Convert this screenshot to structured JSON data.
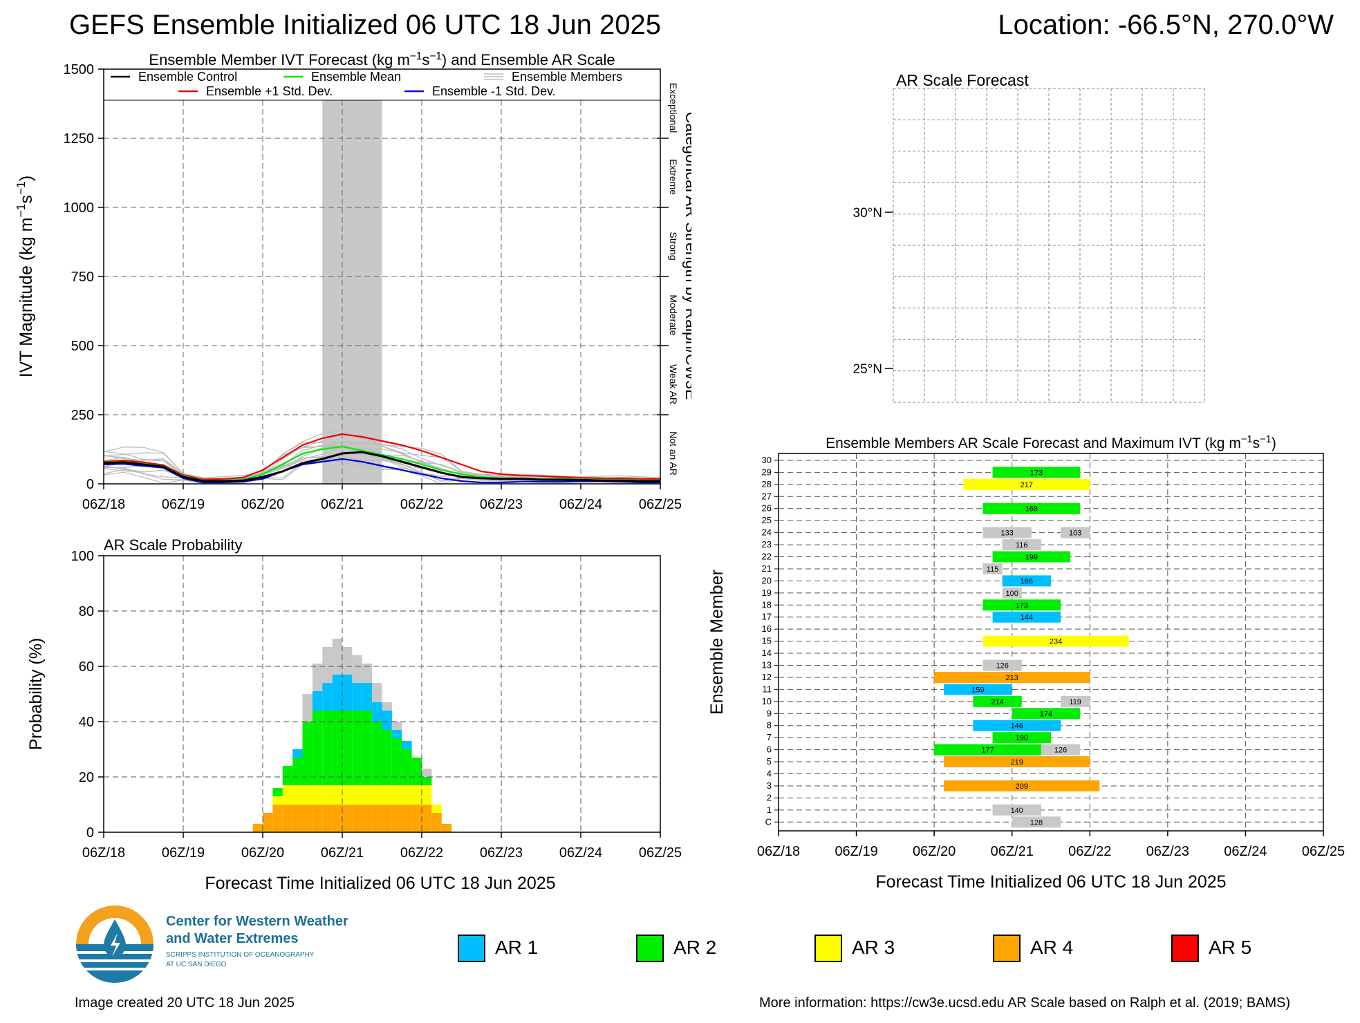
{
  "header": {
    "title": "GEFS Ensemble Initialized 06 UTC 18 Jun 2025",
    "location": "Location: -66.5°N, 270.0°W"
  },
  "time_ticks": [
    "06Z/18",
    "06Z/19",
    "06Z/20",
    "06Z/21",
    "06Z/22",
    "06Z/23",
    "06Z/24",
    "06Z/25"
  ],
  "colors": {
    "ar1": "#00bfff",
    "ar2": "#00ee00",
    "ar3": "#ffff00",
    "ar4": "#ffa500",
    "ar5": "#ff0000",
    "not_ar": "#c8c8c8",
    "control": "#000000",
    "mean": "#00ee00",
    "plus_sd": "#ee0000",
    "minus_sd": "#0000dd"
  },
  "chart_data": [
    {
      "type": "line",
      "title": "Ensemble Member IVT Forecast (kg m⁻¹s⁻¹) and Ensemble AR Scale",
      "xlabel": "",
      "ylabel": "IVT Magnitude (kg m⁻¹s⁻¹)",
      "right_label": "Categorical AR Strength by Ralph/CW3E",
      "categories_right": [
        "Not an AR",
        "Weak AR",
        "Moderate",
        "Strong",
        "Extreme",
        "Exceptional"
      ],
      "ylim": [
        0,
        1500
      ],
      "yticks": [
        "0",
        "250",
        "500",
        "750",
        "1000",
        "1250",
        "1500"
      ],
      "xlim_hours": [
        0,
        168
      ],
      "legend": [
        "Ensemble Control",
        "Ensemble Mean",
        "Ensemble Members",
        "Ensemble +1 Std. Dev.",
        "Ensemble -1 Std. Dev."
      ],
      "shaded_window_hours": [
        66,
        84
      ],
      "x_hours": [
        0,
        6,
        12,
        18,
        24,
        30,
        36,
        42,
        48,
        54,
        60,
        66,
        72,
        78,
        84,
        90,
        96,
        102,
        108,
        114,
        120,
        126,
        132,
        138,
        144,
        150,
        156,
        162,
        168
      ],
      "series": [
        {
          "name": "Ensemble Control",
          "values": [
            75,
            78,
            70,
            62,
            25,
            10,
            10,
            12,
            25,
            45,
            75,
            90,
            110,
            115,
            100,
            80,
            60,
            40,
            25,
            20,
            18,
            18,
            15,
            15,
            14,
            12,
            12,
            10,
            10
          ]
        },
        {
          "name": "Ensemble Mean",
          "values": [
            77,
            80,
            72,
            64,
            28,
            12,
            12,
            15,
            35,
            70,
            110,
            125,
            135,
            120,
            105,
            90,
            70,
            50,
            35,
            25,
            20,
            20,
            18,
            18,
            16,
            15,
            14,
            13,
            12
          ]
        },
        {
          "name": "Ensemble +1 Std. Dev.",
          "values": [
            80,
            85,
            78,
            68,
            32,
            16,
            18,
            22,
            50,
            95,
            140,
            165,
            180,
            170,
            155,
            140,
            120,
            95,
            70,
            45,
            35,
            30,
            28,
            25,
            22,
            20,
            20,
            18,
            18
          ]
        },
        {
          "name": "Ensemble -1 Std. Dev.",
          "values": [
            70,
            72,
            65,
            58,
            20,
            5,
            5,
            8,
            18,
            45,
            70,
            80,
            90,
            80,
            65,
            50,
            35,
            20,
            10,
            5,
            5,
            8,
            8,
            8,
            10,
            10,
            8,
            5,
            5
          ]
        }
      ]
    },
    {
      "type": "bar",
      "title": "AR Scale Probability",
      "xlabel": "Forecast Time Initialized 06 UTC 18 Jun 2025",
      "ylabel": "Probability (%)",
      "ylim": [
        0,
        100
      ],
      "yticks": [
        "0",
        "20",
        "40",
        "60",
        "80",
        "100"
      ],
      "bin_hours": 3,
      "start_hours": [
        45,
        48,
        51,
        54,
        57,
        60,
        63,
        66,
        69,
        72,
        75,
        78,
        81,
        84,
        87,
        90,
        93,
        96,
        99,
        102
      ],
      "stacks": {
        "AR 4": [
          3,
          7,
          10,
          10,
          10,
          10,
          10,
          10,
          10,
          10,
          10,
          10,
          10,
          10,
          10,
          10,
          10,
          10,
          7,
          3
        ],
        "AR 3": [
          0,
          0,
          3,
          7,
          7,
          7,
          7,
          7,
          7,
          7,
          7,
          7,
          7,
          7,
          7,
          7,
          7,
          7,
          3,
          0
        ],
        "AR 2": [
          0,
          0,
          3,
          7,
          10,
          23,
          27,
          27,
          27,
          27,
          27,
          27,
          23,
          20,
          17,
          13,
          10,
          3,
          0,
          0
        ],
        "AR 1": [
          0,
          0,
          0,
          0,
          3,
          0,
          7,
          10,
          13,
          13,
          10,
          10,
          7,
          7,
          3,
          3,
          0,
          0,
          0,
          0
        ],
        "Not AR": [
          0,
          0,
          0,
          0,
          0,
          10,
          10,
          13,
          13,
          10,
          10,
          7,
          7,
          3,
          3,
          0,
          0,
          3,
          0,
          0
        ]
      }
    },
    {
      "type": "bar",
      "title": "Ensemble Members AR Scale Forecast and Maximum IVT (kg m⁻¹s⁻¹)",
      "xlabel": "Forecast Time Initialized 06 UTC 18 Jun 2025",
      "ylabel": "Ensemble Member",
      "members": [
        "C",
        "1",
        "2",
        "3",
        "4",
        "5",
        "6",
        "7",
        "8",
        "9",
        "10",
        "11",
        "12",
        "13",
        "14",
        "15",
        "16",
        "17",
        "18",
        "19",
        "20",
        "21",
        "22",
        "23",
        "24",
        "25",
        "26",
        "27",
        "28",
        "29",
        "30"
      ],
      "segments": [
        {
          "member": "C",
          "start": 72,
          "end": 87,
          "cat": 0,
          "label": "128"
        },
        {
          "member": "1",
          "start": 66,
          "end": 81,
          "cat": 0,
          "label": "140"
        },
        {
          "member": "3",
          "start": 51,
          "end": 99,
          "cat": 4,
          "label": "209"
        },
        {
          "member": "5",
          "start": 51,
          "end": 96,
          "cat": 4,
          "label": "219"
        },
        {
          "member": "6",
          "start": 48,
          "end": 81,
          "cat": 2,
          "label": "177"
        },
        {
          "member": "6",
          "start": 81,
          "end": 93,
          "cat": 0,
          "label": "126"
        },
        {
          "member": "7",
          "start": 66,
          "end": 84,
          "cat": 2,
          "label": "190"
        },
        {
          "member": "8",
          "start": 60,
          "end": 87,
          "cat": 1,
          "label": "146"
        },
        {
          "member": "9",
          "start": 72,
          "end": 93,
          "cat": 2,
          "label": "174"
        },
        {
          "member": "10",
          "start": 60,
          "end": 75,
          "cat": 2,
          "label": "214"
        },
        {
          "member": "10",
          "start": 87,
          "end": 96,
          "cat": 0,
          "label": "119"
        },
        {
          "member": "11",
          "start": 51,
          "end": 72,
          "cat": 1,
          "label": "159"
        },
        {
          "member": "12",
          "start": 48,
          "end": 96,
          "cat": 4,
          "label": "213"
        },
        {
          "member": "13",
          "start": 63,
          "end": 75,
          "cat": 0,
          "label": "126"
        },
        {
          "member": "15",
          "start": 63,
          "end": 108,
          "cat": 3,
          "label": "234"
        },
        {
          "member": "17",
          "start": 66,
          "end": 87,
          "cat": 1,
          "label": "144"
        },
        {
          "member": "18",
          "start": 63,
          "end": 87,
          "cat": 2,
          "label": "173"
        },
        {
          "member": "19",
          "start": 69,
          "end": 75,
          "cat": 0,
          "label": "100"
        },
        {
          "member": "20",
          "start": 69,
          "end": 84,
          "cat": 1,
          "label": "166"
        },
        {
          "member": "21",
          "start": 63,
          "end": 69,
          "cat": 0,
          "label": "115"
        },
        {
          "member": "22",
          "start": 66,
          "end": 90,
          "cat": 2,
          "label": "199"
        },
        {
          "member": "23",
          "start": 69,
          "end": 81,
          "cat": 0,
          "label": "116"
        },
        {
          "member": "24",
          "start": 63,
          "end": 78,
          "cat": 0,
          "label": "133"
        },
        {
          "member": "24",
          "start": 87,
          "end": 96,
          "cat": 0,
          "label": "103"
        },
        {
          "member": "26",
          "start": 63,
          "end": 93,
          "cat": 2,
          "label": "168"
        },
        {
          "member": "28",
          "start": 57,
          "end": 96,
          "cat": 3,
          "label": "217"
        },
        {
          "member": "29",
          "start": 66,
          "end": 93,
          "cat": 2,
          "label": "173"
        }
      ]
    }
  ],
  "map": {
    "title": "AR Scale Forecast",
    "lat_labels": [
      "30°N",
      "25°N"
    ]
  },
  "legend": {
    "items": [
      {
        "label": "AR 1",
        "color": "#00bfff"
      },
      {
        "label": "AR 2",
        "color": "#00ee00"
      },
      {
        "label": "AR 3",
        "color": "#ffff00"
      },
      {
        "label": "AR 4",
        "color": "#ffa500"
      },
      {
        "label": "AR 5",
        "color": "#ff0000"
      }
    ]
  },
  "logo": {
    "line1": "Center for Western Weather",
    "line2": "and Water Extremes",
    "line3": "SCRIPPS INSTITUTION OF OCEANOGRAPHY",
    "line4": "AT UC SAN DIEGO"
  },
  "footer": {
    "created": "Image created 20 UTC 18 Jun 2025",
    "info": "More information: https://cw3e.ucsd.edu AR Scale based on Ralph et al. (2019; BAMS)"
  }
}
